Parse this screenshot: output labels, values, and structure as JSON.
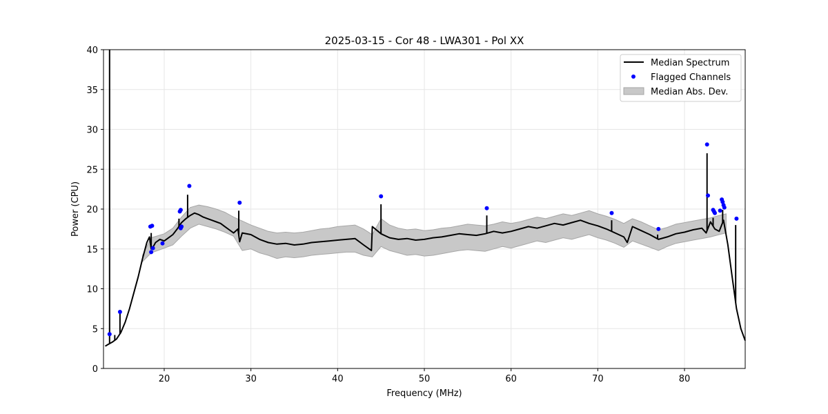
{
  "chart_data": {
    "type": "line",
    "title": "2025-03-15 - Cor 48 - LWA301 - Pol XX",
    "xlabel": "Frequency (MHz)",
    "ylabel": "Power (CPU)",
    "xlim": [
      13.0,
      87.0
    ],
    "ylim": [
      0,
      40
    ],
    "x_ticks": [
      20,
      30,
      40,
      50,
      60,
      70,
      80
    ],
    "y_ticks": [
      0,
      5,
      10,
      15,
      20,
      25,
      30,
      35,
      40
    ],
    "grid": true,
    "legend_position": "top-right",
    "legend": {
      "median": "Median Spectrum",
      "flagged": "Flagged Channels",
      "mad": "Median Abs. Dev."
    },
    "colors": {
      "median": "#000000",
      "flagged": "#0000ff",
      "mad_fill": "#c8c8c8",
      "mad_edge": "#a6a6a6",
      "grid": "#e6e6e6"
    },
    "series": [
      {
        "name": "Median Spectrum",
        "x": [
          13.2,
          13.5,
          14.0,
          14.5,
          15.0,
          15.5,
          16.0,
          16.5,
          17.0,
          17.5,
          18.0,
          18.3,
          18.5,
          18.8,
          19.0,
          19.5,
          20.0,
          20.5,
          21.0,
          21.5,
          22.0,
          22.5,
          23.0,
          23.5,
          24.0,
          24.5,
          25.0,
          25.5,
          26.0,
          26.5,
          27.0,
          27.5,
          28.0,
          28.5,
          28.7,
          29.0,
          30.0,
          31.0,
          32.0,
          33.0,
          34.0,
          35.0,
          36.0,
          37.0,
          38.0,
          39.0,
          40.0,
          41.0,
          42.0,
          43.0,
          43.9,
          44.0,
          45.0,
          46.0,
          47.0,
          48.0,
          49.0,
          50.0,
          51.0,
          52.0,
          53.0,
          54.0,
          55.0,
          56.0,
          57.0,
          58.0,
          59.0,
          60.0,
          61.0,
          62.0,
          63.0,
          64.0,
          65.0,
          66.0,
          67.0,
          68.0,
          69.0,
          70.0,
          71.0,
          72.0,
          73.0,
          73.4,
          74.0,
          75.0,
          76.0,
          77.0,
          78.0,
          79.0,
          80.0,
          81.0,
          82.0,
          82.5,
          83.0,
          83.5,
          84.0,
          84.5,
          85.0,
          85.5,
          86.0,
          86.5,
          87.0
        ],
        "values": [
          2.8,
          3.0,
          3.3,
          3.7,
          4.5,
          5.8,
          7.5,
          9.5,
          11.5,
          13.8,
          15.8,
          16.5,
          15.0,
          15.4,
          15.8,
          16.2,
          16.0,
          16.4,
          16.8,
          17.5,
          18.3,
          18.8,
          19.2,
          19.5,
          19.3,
          19.0,
          18.8,
          18.6,
          18.4,
          18.2,
          17.8,
          17.4,
          17.0,
          17.5,
          15.9,
          17.0,
          16.8,
          16.2,
          15.8,
          15.6,
          15.7,
          15.5,
          15.6,
          15.8,
          15.9,
          16.0,
          16.1,
          16.2,
          16.3,
          15.5,
          14.8,
          17.8,
          16.9,
          16.4,
          16.2,
          16.3,
          16.1,
          16.2,
          16.4,
          16.5,
          16.7,
          16.9,
          16.8,
          16.7,
          16.9,
          17.2,
          17.0,
          17.2,
          17.5,
          17.8,
          17.6,
          17.9,
          18.2,
          18.0,
          18.3,
          18.6,
          18.2,
          17.9,
          17.5,
          17.0,
          16.5,
          15.8,
          17.8,
          17.3,
          16.8,
          16.2,
          16.5,
          16.9,
          17.1,
          17.4,
          17.6,
          17.0,
          18.4,
          17.5,
          17.2,
          18.6,
          15.5,
          11.5,
          7.5,
          5.0,
          3.5
        ],
        "spikes": [
          [
            13.7,
            40.0
          ],
          [
            14.3,
            4.2
          ],
          [
            14.9,
            7.0
          ],
          [
            18.5,
            17.0
          ],
          [
            21.7,
            18.8
          ],
          [
            22.7,
            21.8
          ],
          [
            28.6,
            19.8
          ],
          [
            45.0,
            20.6
          ],
          [
            57.2,
            19.2
          ],
          [
            71.6,
            18.6
          ],
          [
            76.9,
            16.8
          ],
          [
            82.6,
            27.0
          ],
          [
            83.3,
            18.9
          ],
          [
            84.4,
            19.9
          ],
          [
            85.9,
            18.0
          ]
        ]
      },
      {
        "name": "Flagged Channels",
        "x": [
          13.7,
          14.9,
          18.4,
          18.6,
          18.5,
          18.7,
          19.8,
          21.8,
          21.9,
          21.9,
          22.0,
          22.9,
          28.7,
          45.0,
          57.2,
          71.6,
          77.0,
          82.6,
          82.7,
          83.3,
          83.4,
          83.5,
          84.1,
          84.3,
          84.4,
          84.5,
          84.6,
          86.0
        ],
        "values": [
          4.3,
          7.1,
          17.8,
          17.9,
          14.6,
          15.1,
          15.7,
          19.7,
          19.9,
          17.6,
          17.8,
          22.9,
          20.8,
          21.6,
          20.1,
          19.5,
          17.5,
          28.1,
          21.7,
          19.9,
          19.7,
          19.5,
          19.8,
          21.2,
          20.9,
          20.5,
          20.2,
          18.8
        ]
      },
      {
        "name": "Median Abs. Dev.",
        "x": [
          17.5,
          18.5,
          20.0,
          21.0,
          22.0,
          23.0,
          24.0,
          25.0,
          26.0,
          27.0,
          28.0,
          29.0,
          30.0,
          31.0,
          32.0,
          33.0,
          34.0,
          35.0,
          36.0,
          37.0,
          38.0,
          39.0,
          40.0,
          41.0,
          42.0,
          43.0,
          44.0,
          45.0,
          46.0,
          47.0,
          48.0,
          49.0,
          50.0,
          51.0,
          52.0,
          53.0,
          54.0,
          55.0,
          56.0,
          57.0,
          58.0,
          59.0,
          60.0,
          61.0,
          62.0,
          63.0,
          64.0,
          65.0,
          66.0,
          67.0,
          68.0,
          69.0,
          70.0,
          71.0,
          72.0,
          73.0,
          74.0,
          75.0,
          76.0,
          77.0,
          78.0,
          79.0,
          80.0,
          81.0,
          82.0,
          83.0,
          84.0,
          84.8
        ],
        "upper": [
          14.2,
          16.4,
          16.9,
          17.6,
          19.0,
          20.2,
          20.5,
          20.3,
          20.0,
          19.6,
          19.0,
          18.5,
          18.0,
          17.6,
          17.2,
          17.0,
          17.1,
          17.0,
          17.1,
          17.3,
          17.5,
          17.6,
          17.8,
          17.9,
          18.0,
          17.5,
          16.8,
          18.8,
          18.0,
          17.6,
          17.4,
          17.5,
          17.3,
          17.4,
          17.6,
          17.7,
          17.9,
          18.1,
          18.0,
          17.9,
          18.1,
          18.4,
          18.2,
          18.4,
          18.7,
          19.0,
          18.8,
          19.1,
          19.4,
          19.2,
          19.5,
          19.8,
          19.4,
          19.1,
          18.7,
          18.2,
          18.8,
          18.4,
          17.9,
          17.4,
          17.7,
          18.1,
          18.3,
          18.5,
          18.7,
          18.9,
          19.2,
          19.4
        ],
        "lower": [
          13.4,
          14.5,
          15.1,
          15.5,
          16.6,
          17.6,
          18.1,
          17.8,
          17.5,
          17.1,
          16.6,
          14.8,
          15.0,
          14.5,
          14.2,
          13.8,
          14.0,
          13.9,
          14.0,
          14.2,
          14.3,
          14.4,
          14.5,
          14.6,
          14.6,
          14.2,
          14.0,
          15.3,
          14.8,
          14.5,
          14.2,
          14.3,
          14.1,
          14.2,
          14.4,
          14.6,
          14.8,
          14.9,
          14.8,
          14.7,
          15.0,
          15.3,
          15.1,
          15.4,
          15.7,
          16.0,
          15.8,
          16.1,
          16.4,
          16.2,
          16.5,
          16.8,
          16.4,
          16.1,
          15.7,
          15.2,
          16.0,
          15.6,
          15.2,
          14.8,
          15.3,
          15.7,
          15.9,
          16.1,
          16.3,
          16.5,
          16.8,
          17.0
        ]
      }
    ]
  }
}
